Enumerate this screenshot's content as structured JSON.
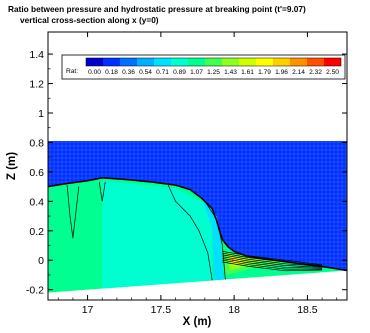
{
  "chart_data": {
    "type": "contour",
    "title": "Ratio between pressure and hydrostatic pressure at breaking point (t'=9.07)",
    "subtitle": "vertical cross-section along x  (y=0)",
    "xlabel": "X (m)",
    "ylabel": "Z (m)",
    "xlim": [
      16.73,
      18.77
    ],
    "ylim": [
      -0.27,
      1.55
    ],
    "x_ticks": [
      17,
      17.5,
      18,
      18.5
    ],
    "y_ticks": [
      -0.2,
      0,
      0.2,
      0.4,
      0.6,
      0.8,
      1,
      1.2,
      1.4
    ],
    "legend": {
      "title": "Rat:",
      "placement": "top",
      "levels": [
        "0.00",
        "0.18",
        "0.36",
        "0.54",
        "0.71",
        "0.89",
        "1.07",
        "1.25",
        "1.43",
        "1.61",
        "1.79",
        "1.96",
        "2.14",
        "2.32",
        "2.50"
      ],
      "colors": [
        "#0000c8",
        "#0030ff",
        "#0070ff",
        "#00b0ff",
        "#00e0ff",
        "#00ffd0",
        "#00ff90",
        "#40ff50",
        "#90ff20",
        "#d0ff00",
        "#ffff00",
        "#ffd000",
        "#ff9000",
        "#ff5000",
        "#ff0000"
      ]
    },
    "domain": {
      "top_z": 0.81,
      "bottom_z_at_x_min": -0.22,
      "bottom_z_at_x_max": -0.07
    },
    "free_surface": {
      "x": [
        16.73,
        16.85,
        17.0,
        17.1,
        17.25,
        17.45,
        17.6,
        17.7,
        17.78,
        17.85,
        17.88,
        17.9,
        17.92,
        17.96,
        18.0,
        18.08,
        18.2,
        18.35,
        18.5,
        18.65,
        18.77
      ],
      "z": [
        0.5,
        0.52,
        0.54,
        0.56,
        0.55,
        0.53,
        0.51,
        0.48,
        0.42,
        0.35,
        0.27,
        0.2,
        0.14,
        0.09,
        0.06,
        0.03,
        0.01,
        -0.01,
        -0.03,
        -0.05,
        -0.07
      ]
    }
  }
}
